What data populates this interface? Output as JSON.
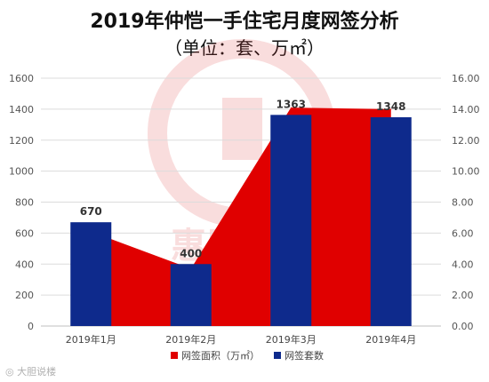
{
  "chart_data": {
    "type": "bar",
    "title": "2019年仲恺一手住宅月度网签分析",
    "subtitle": "（单位：套、万㎡）",
    "categories": [
      "2019年1月",
      "2019年2月",
      "2019年3月",
      "2019年4月"
    ],
    "series": [
      {
        "name": "网签面积（万㎡）",
        "type": "area",
        "axis": "right",
        "color": "#e00000",
        "values": [
          6.1,
          3.7,
          14.1,
          14.0
        ]
      },
      {
        "name": "网签套数",
        "type": "bar",
        "axis": "left",
        "color": "#0e2a8c",
        "values": [
          670,
          400,
          1363,
          1348
        ],
        "data_labels": [
          "670",
          "400",
          "1363",
          "1348"
        ]
      }
    ],
    "y_left": {
      "range": [
        0,
        1600
      ],
      "ticks": [
        "0",
        "200",
        "400",
        "600",
        "800",
        "1000",
        "1200",
        "1400",
        "1600"
      ]
    },
    "y_right": {
      "range": [
        0,
        16
      ],
      "ticks": [
        "0.00",
        "2.00",
        "4.00",
        "6.00",
        "8.00",
        "10.00",
        "12.00",
        "14.00",
        "16.00"
      ]
    },
    "grid": true,
    "legend": "bottom",
    "watermark": "惠民之家 WWW.ZOTHZ.COM"
  },
  "footer": "大胆说楼"
}
